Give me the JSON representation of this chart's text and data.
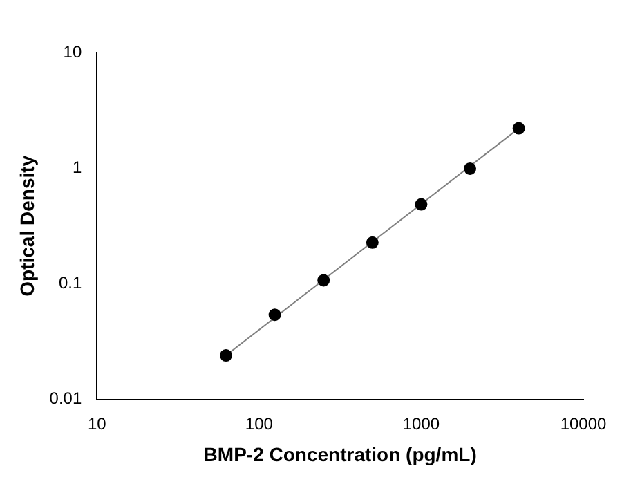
{
  "chart_data": {
    "type": "scatter",
    "xlabel": "BMP-2 Concentration (pg/mL)",
    "ylabel": "Optical Density",
    "log": "xy",
    "grid": false,
    "legend": false,
    "marker": "circle",
    "xlim": [
      10,
      10000
    ],
    "xticks": [
      10,
      100,
      1000,
      10000
    ],
    "ylim": [
      0.01,
      10
    ],
    "yticks": [
      0.01,
      0.1,
      1,
      10
    ],
    "series": [
      {
        "type": "scatter",
        "color": "#000000",
        "x": [
          62.5,
          125,
          250,
          500,
          1000,
          2000,
          4000
        ],
        "values": [
          0.024,
          0.054,
          0.107,
          0.227,
          0.486,
          0.99,
          2.21
        ]
      },
      {
        "type": "line",
        "marker": "none",
        "color": "#808080",
        "x": [
          62.5,
          4000
        ],
        "values": [
          0.024,
          2.21
        ]
      }
    ]
  }
}
